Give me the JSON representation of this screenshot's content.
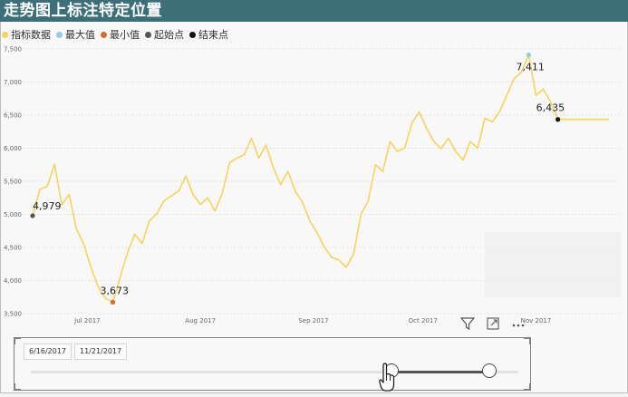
{
  "title": "走势图上标注特定位置",
  "legend": [
    {
      "label": "指标数据",
      "color": "#f7d35e"
    },
    {
      "label": "最大值",
      "color": "#8fcde8"
    },
    {
      "label": "最小值",
      "color": "#d86a2c"
    },
    {
      "label": "起始点",
      "color": "#555555"
    },
    {
      "label": "结束点",
      "color": "#111111"
    }
  ],
  "chart_data": {
    "type": "line",
    "x_ticks": [
      "Jul 2017",
      "Aug 2017",
      "Sep 2017",
      "Oct 2017",
      "Nov 2017"
    ],
    "y_ticks": [
      3500,
      4000,
      4500,
      5000,
      5500,
      6000,
      6500,
      7000,
      7500
    ],
    "y_tick_labels": [
      "3,500",
      "4,000",
      "4,500",
      "5,000",
      "5,500",
      "6,000",
      "6,500",
      "7,000",
      "7,500"
    ],
    "ylim": [
      3500,
      7500
    ],
    "x_range": [
      "2017-06-16",
      "2017-11-21"
    ],
    "series": [
      {
        "name": "指标数据",
        "color": "#f7d35e",
        "dates": [
          "2017-06-16",
          "2017-06-18",
          "2017-06-20",
          "2017-06-22",
          "2017-06-24",
          "2017-06-26",
          "2017-06-28",
          "2017-06-30",
          "2017-07-02",
          "2017-07-04",
          "2017-07-06",
          "2017-07-08",
          "2017-07-10",
          "2017-07-12",
          "2017-07-14",
          "2017-07-16",
          "2017-07-18",
          "2017-07-20",
          "2017-07-22",
          "2017-07-24",
          "2017-07-26",
          "2017-07-28",
          "2017-07-30",
          "2017-08-01",
          "2017-08-03",
          "2017-08-05",
          "2017-08-07",
          "2017-08-09",
          "2017-08-11",
          "2017-08-13",
          "2017-08-15",
          "2017-08-17",
          "2017-08-19",
          "2017-08-21",
          "2017-08-23",
          "2017-08-25",
          "2017-08-27",
          "2017-08-29",
          "2017-08-31",
          "2017-09-02",
          "2017-09-04",
          "2017-09-06",
          "2017-09-08",
          "2017-09-10",
          "2017-09-12",
          "2017-09-14",
          "2017-09-16",
          "2017-09-18",
          "2017-09-20",
          "2017-09-22",
          "2017-09-24",
          "2017-09-26",
          "2017-09-28",
          "2017-09-30",
          "2017-10-02",
          "2017-10-04",
          "2017-10-06",
          "2017-10-08",
          "2017-10-10",
          "2017-10-12",
          "2017-10-14",
          "2017-10-16",
          "2017-10-18",
          "2017-10-20",
          "2017-10-22",
          "2017-10-24",
          "2017-10-26",
          "2017-10-28",
          "2017-10-30",
          "2017-11-01",
          "2017-11-03",
          "2017-11-05",
          "2017-11-07",
          "2017-11-09",
          "2017-11-11",
          "2017-11-13",
          "2017-11-15",
          "2017-11-17",
          "2017-11-19",
          "2017-11-21"
        ],
        "values": [
          4979,
          5380,
          5420,
          5760,
          5150,
          5300,
          4780,
          4550,
          4200,
          3900,
          3730,
          3673,
          4050,
          4420,
          4700,
          4560,
          4900,
          5010,
          5200,
          5280,
          5350,
          5580,
          5300,
          5150,
          5250,
          5050,
          5320,
          5780,
          5850,
          5900,
          6150,
          5850,
          6050,
          5700,
          5450,
          5650,
          5350,
          5180,
          4900,
          4720,
          4500,
          4350,
          4310,
          4200,
          4400,
          5000,
          5200,
          5750,
          5650,
          6100,
          5950,
          6000,
          6380,
          6550,
          6300,
          6100,
          5990,
          6150,
          5950,
          5820,
          6100,
          6000,
          6450,
          6400,
          6550,
          6800,
          7050,
          7150,
          7411,
          6800,
          6890,
          6700,
          6435,
          6435,
          6435,
          6435,
          6435,
          6435,
          6435,
          6435
        ]
      }
    ],
    "annotations": [
      {
        "label": "4,979",
        "date": "2017-06-16",
        "value": 4979,
        "kind": "start"
      },
      {
        "label": "3,673",
        "date": "2017-07-08",
        "value": 3673,
        "kind": "min"
      },
      {
        "label": "7,411",
        "date": "2017-10-30",
        "value": 7411,
        "kind": "max"
      },
      {
        "label": "6,435",
        "date": "2017-11-07",
        "value": 6435,
        "kind": "end"
      }
    ],
    "grid": true
  },
  "slicer": {
    "start_date": "6/16/2017",
    "end_date": "11/21/2017",
    "handle_start": 0.74,
    "handle_end": 0.94
  }
}
